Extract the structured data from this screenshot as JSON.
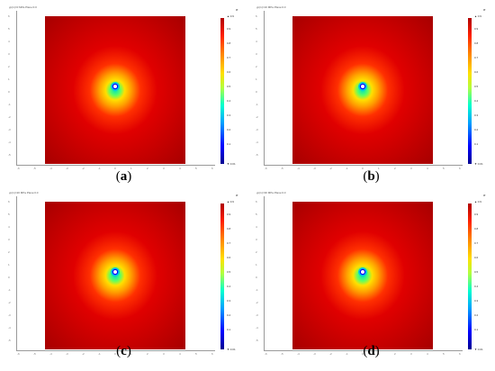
{
  "panels": [
    {
      "id": "a",
      "caption_letter": "a",
      "title": "γp(1)=0 MPa Plane:0.0",
      "unit": "σ",
      "cbar_top": "▲ 0.9",
      "cbar_bottom": "▼ 0.01",
      "cbar_ticks": [
        "0.9",
        "0.8",
        "0.7",
        "0.6",
        "0.5",
        "0.4",
        "0.3",
        "0.2",
        "0.1"
      ]
    },
    {
      "id": "b",
      "caption_letter": "b",
      "title": "γp(1)=10 MPa Plane:0.0",
      "unit": "σ",
      "cbar_top": "▲ 0.9",
      "cbar_bottom": "▼ 0.01",
      "cbar_ticks": [
        "0.9",
        "0.8",
        "0.7",
        "0.6",
        "0.5",
        "0.4",
        "0.3",
        "0.2",
        "0.1"
      ]
    },
    {
      "id": "c",
      "caption_letter": "c",
      "title": "γp(1)=20 MPa Plane:0.0",
      "unit": "σ",
      "cbar_top": "▲ 0.9",
      "cbar_bottom": "▼ 0.01",
      "cbar_ticks": [
        "0.9",
        "0.8",
        "0.7",
        "0.6",
        "0.5",
        "0.4",
        "0.3",
        "0.2",
        "0.1"
      ]
    },
    {
      "id": "d",
      "caption_letter": "d",
      "title": "γp(1)=30 MPa Plane:0.0",
      "unit": "σ",
      "cbar_top": "▲ 0.9",
      "cbar_bottom": "▼ 0.01",
      "cbar_ticks": [
        "0.9",
        "0.8",
        "0.7",
        "0.6",
        "0.5",
        "0.4",
        "0.3",
        "0.2",
        "0.1"
      ]
    }
  ],
  "y_ticks": [
    "6",
    "5",
    "4",
    "3",
    "2",
    "1",
    "0",
    "-1",
    "-2",
    "-3",
    "-4",
    "-5"
  ],
  "x_ticks": [
    "-6",
    "-5",
    "-4",
    "-3",
    "-2",
    "-1",
    "0",
    "1",
    "2",
    "3",
    "4",
    "5",
    "6"
  ],
  "colors": {
    "outer": "#b30000",
    "mid": "#ff2a00",
    "ring": "#ffe000",
    "inner": "#00e0c0",
    "hole": "#0000ff"
  }
}
